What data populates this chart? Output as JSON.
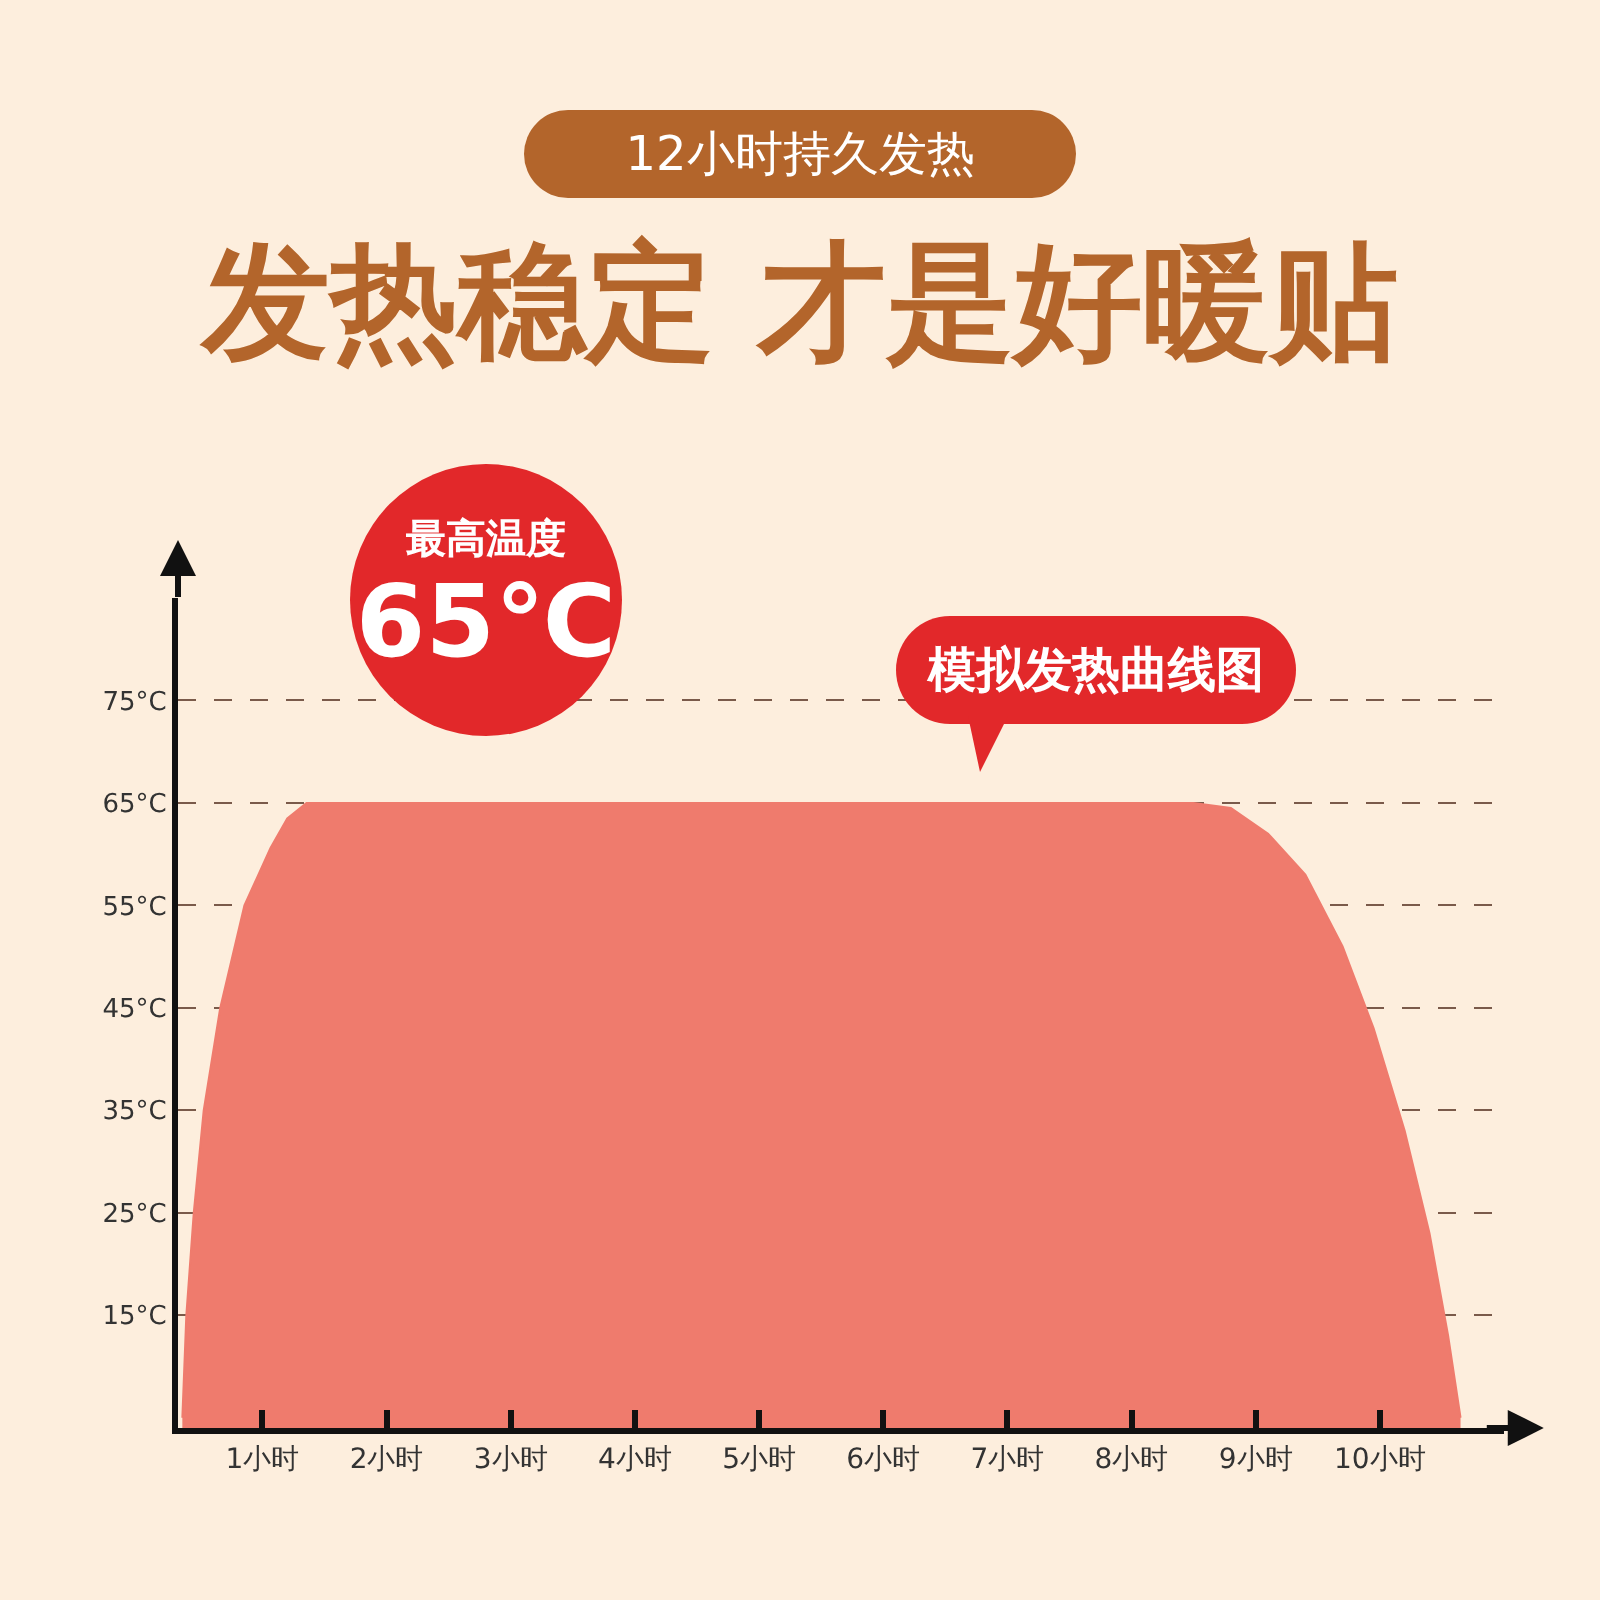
{
  "chart_data": {
    "type": "area",
    "title": "发热稳定 才是好暖贴",
    "subtitle": "12小时持久发热",
    "annotations": [
      "最高温度",
      "65℃",
      "模拟发热曲线图"
    ],
    "series": [
      {
        "color": "#ef7b6d",
        "x": [
          0.355,
          0.387,
          0.447,
          0.527,
          0.66,
          0.855,
          1.065,
          1.2,
          1.355,
          8.5,
          8.8,
          9.1,
          9.4,
          9.7,
          9.95,
          10.2,
          10.4,
          10.55,
          10.65
        ],
        "values": [
          5,
          15,
          25,
          35,
          45,
          55,
          60.6,
          63.5,
          65,
          65,
          64.5,
          62,
          58,
          51,
          43,
          33,
          23,
          13,
          5
        ]
      }
    ],
    "xlim": [
      0.32,
      11
    ],
    "xticks": [
      {
        "value": 1,
        "label": "1小时"
      },
      {
        "value": 2,
        "label": "2小时"
      },
      {
        "value": 3,
        "label": "3小时"
      },
      {
        "value": 4,
        "label": "4小时"
      },
      {
        "value": 5,
        "label": "5小时"
      },
      {
        "value": 6,
        "label": "6小时"
      },
      {
        "value": 7,
        "label": "7小时"
      },
      {
        "value": 8,
        "label": "8小时"
      },
      {
        "value": 9,
        "label": "9小时"
      },
      {
        "value": 10,
        "label": "10小时"
      }
    ],
    "ylim": [
      4,
      85
    ],
    "yticks": [
      {
        "value": 15,
        "label": "15°C"
      },
      {
        "value": 25,
        "label": "25°C"
      },
      {
        "value": 35,
        "label": "35°C"
      },
      {
        "value": 45,
        "label": "45°C"
      },
      {
        "value": 55,
        "label": "55°C"
      },
      {
        "value": 65,
        "label": "65°C"
      },
      {
        "value": 75,
        "label": "75°C"
      }
    ],
    "grid": "y",
    "legend": false
  }
}
